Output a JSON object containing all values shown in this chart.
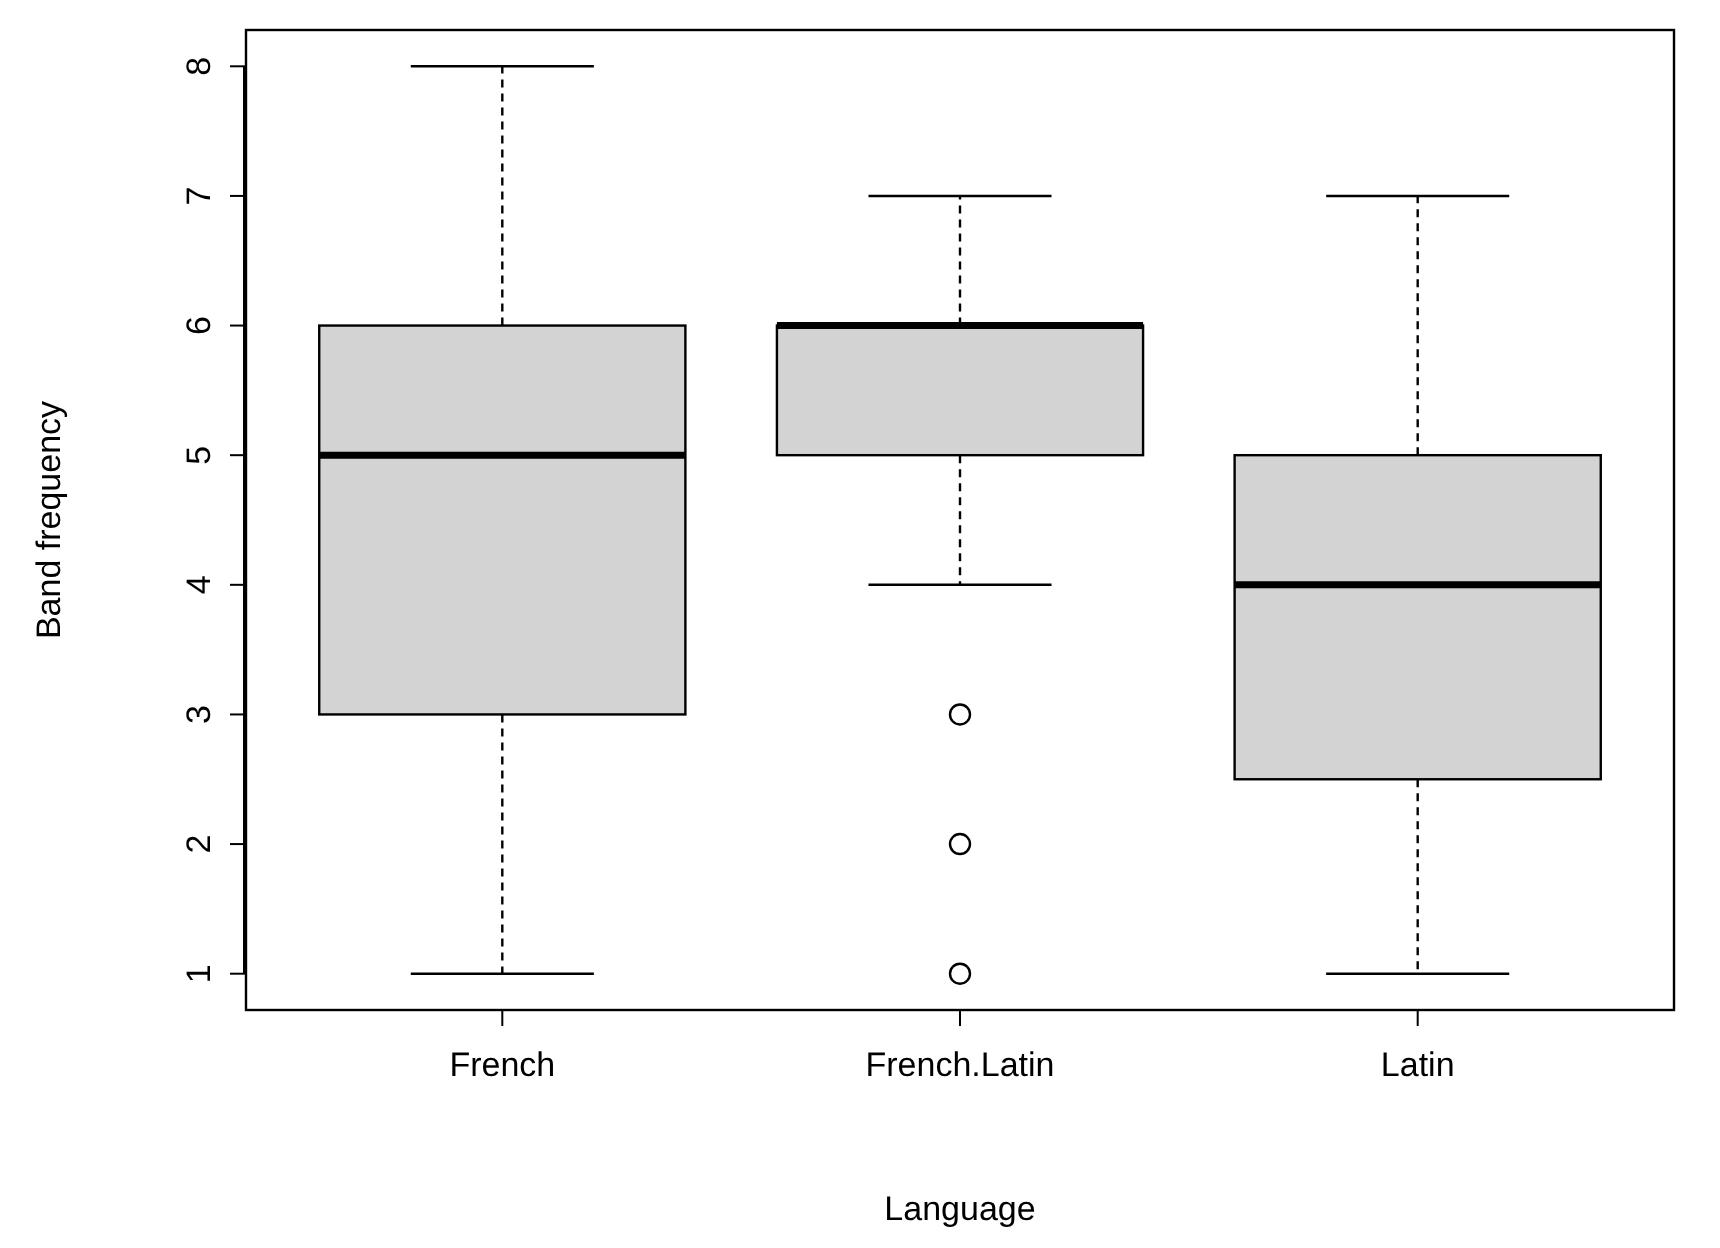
{
  "chart_data": {
    "type": "box",
    "xlabel": "Language",
    "ylabel": "Band frequency",
    "categories": [
      "French",
      "French.Latin",
      "Latin"
    ],
    "color": "#d3d3d3",
    "boxes": [
      {
        "low": 1,
        "q1": 3,
        "median": 5,
        "q3": 6,
        "high": 8
      },
      {
        "low": 4,
        "q1": 5,
        "median": 6,
        "q3": 6,
        "high": 7,
        "outliers": [
          3,
          2,
          1
        ]
      },
      {
        "low": 1,
        "q1": 2.5,
        "median": 4,
        "q3": 5,
        "high": 7
      }
    ],
    "ylim": [
      0.72,
      8.28
    ],
    "yticks": [
      1,
      2,
      3,
      4,
      5,
      6,
      7,
      8
    ],
    "grid": false
  }
}
